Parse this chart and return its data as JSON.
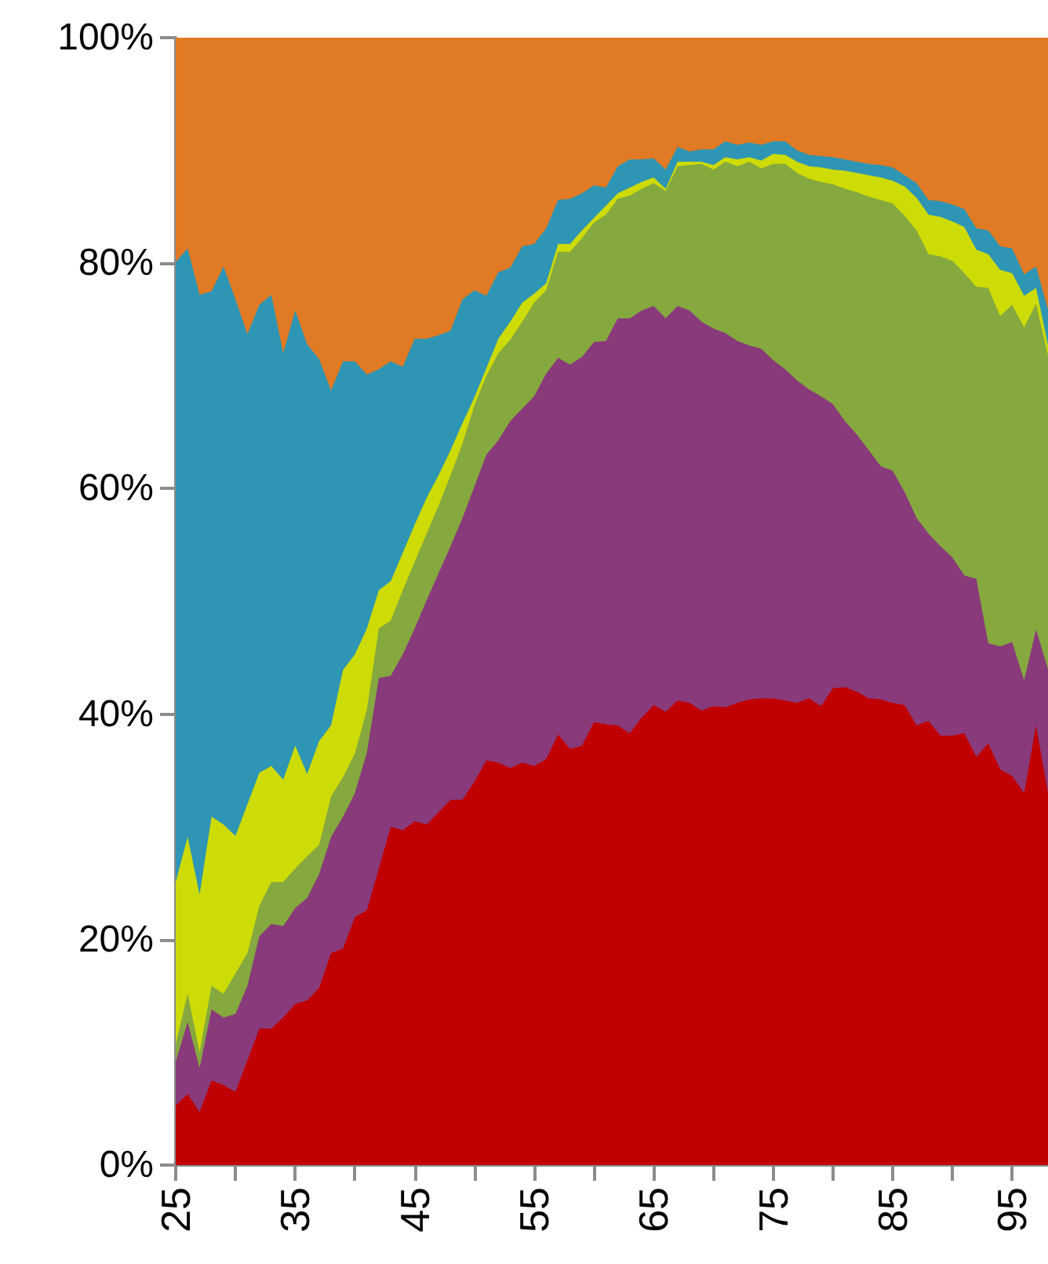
{
  "chart_data": {
    "type": "area",
    "stacked": true,
    "x": [
      25,
      26,
      27,
      28,
      29,
      30,
      31,
      32,
      33,
      34,
      35,
      36,
      37,
      38,
      39,
      40,
      41,
      42,
      43,
      44,
      45,
      46,
      47,
      48,
      49,
      50,
      51,
      52,
      53,
      54,
      55,
      56,
      57,
      58,
      59,
      60,
      61,
      62,
      63,
      64,
      65,
      66,
      67,
      68,
      69,
      70,
      71,
      72,
      73,
      74,
      75,
      76,
      77,
      78,
      79,
      80,
      81,
      82,
      83,
      84,
      85,
      86,
      87,
      88,
      89,
      90,
      91,
      92,
      93,
      94,
      95,
      96,
      97,
      98
    ],
    "series": [
      {
        "color": "#c00000",
        "values": [
          5.3,
          6.3,
          4.7,
          7.5,
          7.1,
          6.5,
          9.3,
          12.1,
          12.1,
          13.1,
          14.3,
          14.6,
          15.7,
          18.8,
          19.2,
          22.0,
          22.6,
          26.3,
          30.0,
          29.7,
          30.5,
          30.2,
          31.3,
          32.4,
          32.4,
          34.0,
          35.9,
          35.7,
          35.2,
          35.7,
          35.4,
          36.0,
          38.2,
          36.9,
          37.2,
          39.3,
          39.1,
          39.0,
          38.3,
          39.7,
          40.8,
          40.2,
          41.2,
          41.0,
          40.3,
          40.7,
          40.6,
          41.0,
          41.3,
          41.4,
          41.4,
          41.2,
          41.0,
          41.4,
          40.7,
          42.3,
          42.4,
          42.0,
          41.4,
          41.3,
          41.0,
          40.8,
          39.0,
          39.4,
          38.1,
          38.1,
          38.3,
          36.2,
          37.4,
          35.1,
          34.5,
          33.0,
          39.0,
          33.0
        ]
      },
      {
        "color": "#893a7a",
        "values": [
          3.9,
          6.4,
          3.9,
          6.3,
          6.0,
          6.9,
          6.6,
          8.2,
          9.3,
          8.1,
          8.5,
          9.1,
          10.1,
          10.3,
          11.7,
          11.0,
          14.0,
          16.9,
          13.4,
          15.6,
          17.1,
          19.9,
          21.2,
          22.5,
          25.0,
          26.2,
          27.1,
          28.6,
          30.8,
          31.4,
          32.8,
          34.2,
          33.4,
          34.1,
          34.5,
          33.7,
          34.0,
          36.1,
          36.8,
          36.1,
          35.4,
          34.9,
          35.0,
          34.8,
          34.5,
          33.5,
          33.2,
          32.1,
          31.4,
          31.0,
          30.0,
          29.4,
          28.6,
          27.4,
          27.5,
          25.2,
          23.6,
          22.8,
          22.0,
          20.7,
          20.6,
          18.9,
          18.4,
          16.6,
          16.8,
          15.8,
          14.0,
          15.8,
          8.9,
          10.9,
          11.9,
          10.0,
          8.5,
          11.0
        ]
      },
      {
        "color": "#85a83f",
        "values": [
          1.5,
          2.5,
          1.4,
          2.1,
          2.1,
          3.6,
          2.9,
          2.7,
          3.7,
          3.9,
          3.5,
          3.7,
          2.6,
          3.6,
          3.5,
          3.5,
          3.8,
          4.4,
          4.9,
          5.7,
          5.9,
          5.9,
          6.0,
          6.3,
          6.6,
          7.2,
          7.0,
          7.7,
          7.2,
          7.7,
          8.3,
          7.4,
          9.4,
          10.0,
          10.5,
          10.6,
          11.2,
          10.6,
          10.9,
          10.8,
          10.9,
          11.3,
          12.4,
          12.9,
          14.0,
          14.1,
          15.2,
          15.5,
          16.3,
          16.0,
          17.4,
          18.2,
          18.4,
          18.7,
          19.0,
          19.5,
          20.6,
          21.5,
          22.5,
          23.6,
          23.7,
          24.5,
          25.5,
          24.8,
          25.7,
          26.3,
          26.8,
          25.9,
          31.5,
          29.3,
          29.9,
          31.3,
          28.9,
          27.8
        ]
      },
      {
        "color": "#cddb06",
        "values": [
          14.4,
          13.9,
          14.0,
          15.0,
          15.0,
          12.2,
          13.2,
          11.8,
          10.3,
          9.1,
          10.9,
          7.3,
          9.2,
          6.3,
          9.5,
          8.8,
          7.2,
          3.4,
          3.5,
          3.3,
          3.3,
          3.2,
          2.7,
          2.2,
          1.8,
          0.7,
          0.7,
          1.3,
          1.6,
          1.7,
          0.8,
          0.6,
          0.7,
          0.7,
          0.7,
          0.4,
          0.8,
          0.5,
          0.7,
          0.6,
          0.5,
          0.2,
          0.4,
          0.3,
          0.2,
          0.4,
          0.4,
          0.6,
          0.4,
          0.7,
          0.9,
          0.8,
          1.0,
          1.1,
          1.3,
          1.3,
          1.6,
          1.7,
          1.9,
          2.0,
          2.0,
          2.6,
          2.9,
          3.5,
          3.5,
          3.5,
          4.1,
          3.3,
          3.0,
          4.1,
          2.8,
          2.8,
          1.4,
          0.9
        ]
      },
      {
        "color": "#2e96b4",
        "values": [
          55.0,
          52.2,
          53.2,
          46.6,
          49.5,
          47.6,
          41.7,
          41.5,
          41.8,
          37.8,
          38.6,
          38.1,
          33.9,
          29.7,
          27.4,
          26.0,
          22.5,
          19.6,
          19.5,
          16.5,
          16.5,
          14.1,
          12.4,
          10.6,
          11.0,
          9.5,
          6.4,
          5.9,
          4.8,
          5.0,
          4.4,
          4.9,
          3.9,
          4.0,
          3.3,
          2.9,
          1.6,
          2.4,
          2.5,
          2.0,
          1.7,
          1.7,
          1.3,
          0.9,
          1.1,
          1.4,
          1.4,
          1.3,
          1.3,
          1.4,
          1.1,
          1.2,
          1.0,
          1.0,
          1.0,
          1.1,
          1.0,
          1.0,
          1.0,
          1.1,
          1.2,
          1.0,
          1.3,
          1.3,
          1.4,
          1.5,
          1.6,
          1.9,
          2.1,
          2.1,
          2.2,
          1.9,
          1.9,
          3.2
        ]
      },
      {
        "color": "#e07a24",
        "values": [
          19.9,
          18.7,
          22.8,
          22.5,
          20.3,
          23.2,
          26.3,
          23.7,
          22.8,
          28.0,
          24.2,
          27.2,
          28.5,
          31.3,
          28.7,
          28.7,
          29.9,
          29.4,
          28.7,
          29.2,
          26.7,
          26.7,
          26.4,
          26.0,
          23.2,
          22.4,
          22.9,
          20.8,
          20.4,
          18.5,
          18.3,
          16.9,
          14.4,
          14.3,
          13.8,
          13.1,
          13.3,
          11.4,
          10.8,
          10.8,
          10.7,
          11.7,
          9.7,
          10.1,
          9.9,
          9.9,
          9.2,
          9.5,
          9.3,
          9.5,
          9.2,
          9.2,
          10.0,
          10.4,
          10.5,
          10.6,
          10.8,
          11.0,
          11.2,
          11.3,
          11.5,
          12.2,
          12.9,
          14.4,
          14.5,
          14.8,
          15.2,
          16.9,
          17.1,
          18.5,
          18.7,
          21.0,
          20.3,
          24.1
        ]
      }
    ],
    "xlim": [
      25,
      98
    ],
    "xticks": [
      25,
      {
        "value": 30,
        "label": null
      },
      35,
      {
        "value": 40,
        "label": null
      },
      45,
      {
        "value": 50,
        "label": null
      },
      55,
      {
        "value": 60,
        "label": null
      },
      65,
      {
        "value": 70,
        "label": null
      },
      75,
      {
        "value": 80,
        "label": null
      },
      85,
      {
        "value": 90,
        "label": null
      },
      95
    ],
    "ylim": [
      0,
      100
    ],
    "yticks": [
      {
        "value": 0,
        "label": "0%"
      },
      {
        "value": 20,
        "label": "20%"
      },
      {
        "value": 40,
        "label": "40%"
      },
      {
        "value": 60,
        "label": "60%"
      },
      {
        "value": 80,
        "label": "80%"
      },
      {
        "value": 100,
        "label": "100%"
      }
    ]
  }
}
